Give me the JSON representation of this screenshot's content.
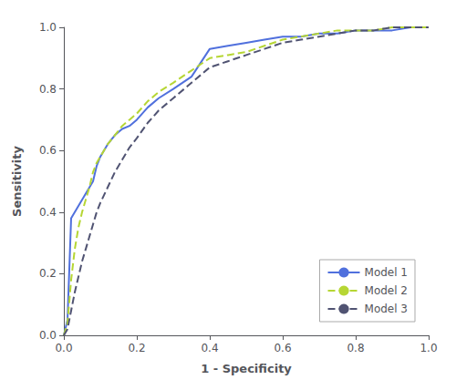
{
  "chart_data": {
    "type": "line",
    "title": "",
    "xlabel": "1 - Specificity",
    "ylabel": "Sensitivity",
    "x": [
      0.0,
      0.01,
      0.02,
      0.03,
      0.04,
      0.05,
      0.06,
      0.07,
      0.08,
      0.09,
      0.1,
      0.12,
      0.14,
      0.16,
      0.18,
      0.2,
      0.23,
      0.26,
      0.3,
      0.35,
      0.4,
      0.45,
      0.5,
      0.55,
      0.6,
      0.65,
      0.7,
      0.75,
      0.8,
      0.85,
      0.9,
      0.95,
      1.0
    ],
    "series": [
      {
        "name": "Model 1",
        "line_style": "solid",
        "values": [
          0.0,
          0.05,
          0.38,
          0.4,
          0.42,
          0.44,
          0.46,
          0.48,
          0.5,
          0.55,
          0.58,
          0.62,
          0.65,
          0.67,
          0.68,
          0.7,
          0.74,
          0.77,
          0.8,
          0.84,
          0.93,
          0.94,
          0.95,
          0.96,
          0.97,
          0.97,
          0.98,
          0.98,
          0.99,
          0.99,
          0.99,
          1.0,
          1.0
        ]
      },
      {
        "name": "Model 2",
        "line_style": "dashed",
        "values": [
          0.0,
          0.04,
          0.18,
          0.28,
          0.35,
          0.4,
          0.44,
          0.48,
          0.53,
          0.56,
          0.58,
          0.62,
          0.65,
          0.68,
          0.7,
          0.72,
          0.76,
          0.79,
          0.82,
          0.86,
          0.9,
          0.91,
          0.92,
          0.94,
          0.96,
          0.97,
          0.98,
          0.99,
          0.99,
          0.99,
          1.0,
          1.0,
          1.0
        ]
      },
      {
        "name": "Model 3",
        "line_style": "dashed",
        "values": [
          0.0,
          0.02,
          0.08,
          0.14,
          0.19,
          0.24,
          0.28,
          0.32,
          0.36,
          0.4,
          0.43,
          0.48,
          0.53,
          0.57,
          0.61,
          0.64,
          0.69,
          0.73,
          0.77,
          0.82,
          0.87,
          0.89,
          0.91,
          0.93,
          0.95,
          0.96,
          0.97,
          0.98,
          0.99,
          0.99,
          1.0,
          1.0,
          1.0
        ]
      }
    ],
    "xlim": [
      0.0,
      1.0
    ],
    "ylim": [
      0.0,
      1.0
    ],
    "xticks": [
      {
        "value": 0,
        "label": "0.0"
      },
      0.2,
      0.4,
      0.6,
      0.8,
      {
        "value": 1,
        "label": "1.0"
      }
    ],
    "yticks": [
      {
        "value": 0,
        "label": "0.0"
      },
      0.2,
      0.4,
      0.6,
      0.8,
      {
        "value": 1,
        "label": "1.0"
      }
    ],
    "grid": false,
    "legend": "lower right",
    "marker": "none"
  }
}
